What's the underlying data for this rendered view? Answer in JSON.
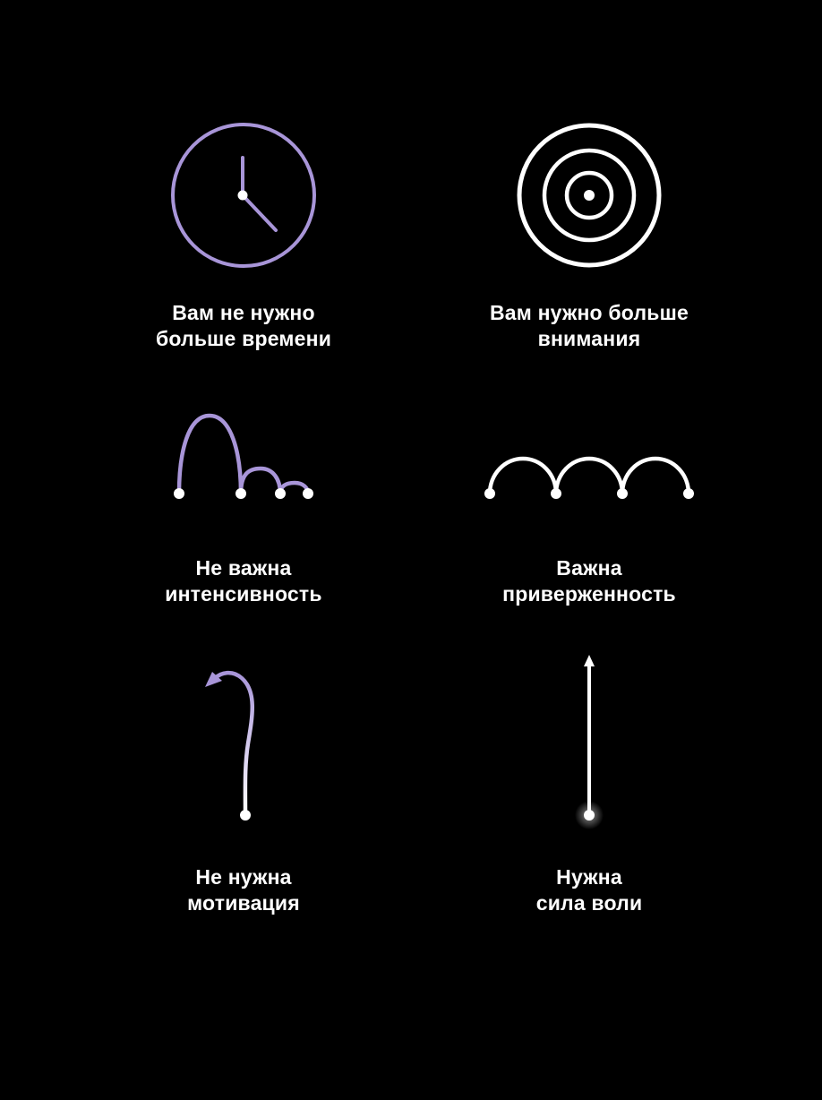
{
  "colors": {
    "background": "#000000",
    "accent": "#a895d8",
    "text": "#ffffff",
    "stroke_white": "#ffffff"
  },
  "items": [
    {
      "icon": "clock-icon",
      "line1": "Вам не нужно",
      "line2": "больше времени"
    },
    {
      "icon": "target-icon",
      "line1": "Вам нужно больше",
      "line2": "внимания"
    },
    {
      "icon": "decaying-bounce-icon",
      "line1": "Не важна",
      "line2": "интенсивность"
    },
    {
      "icon": "steady-arcs-icon",
      "line1": "Важна",
      "line2": "приверженность"
    },
    {
      "icon": "curved-arrow-icon",
      "line1": "Не нужна",
      "line2": "мотивация"
    },
    {
      "icon": "straight-arrow-icon",
      "line1": "Нужна",
      "line2": "сила воли"
    }
  ]
}
